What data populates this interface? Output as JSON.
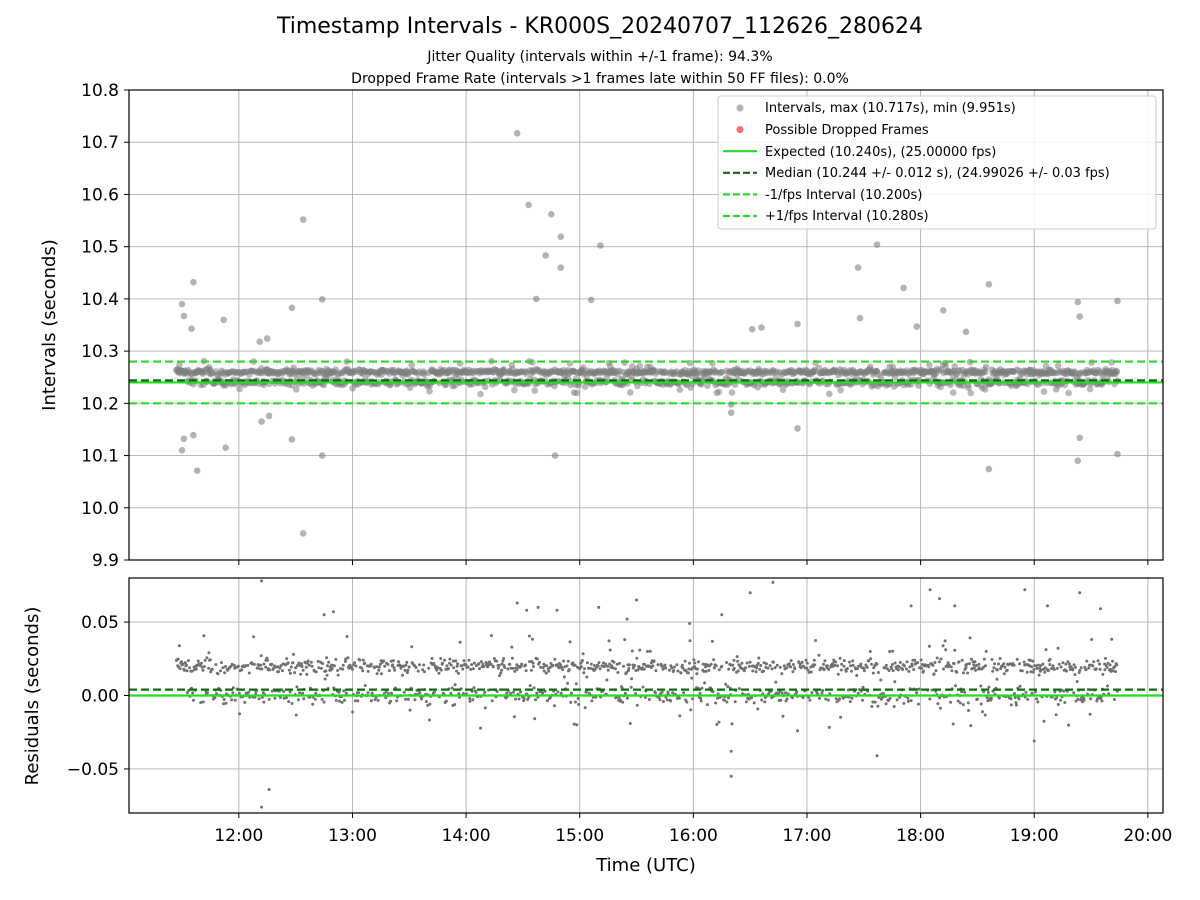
{
  "chart_data": [
    {
      "type": "scatter",
      "title": "Timestamp Intervals - KR000S_20240707_112626_280624",
      "subtitle_lines": [
        "Jitter Quality (intervals within +/-1 frame): 94.3%",
        "Dropped Frame Rate (intervals >1 frames late within 50 FF files): 0.0%"
      ],
      "xlabel": "",
      "ylabel": "Intervals (seconds)",
      "ylim": [
        9.9,
        10.8
      ],
      "xlim": [
        "11:02",
        "20:08"
      ],
      "yticks": [
        "9.9",
        "10.0",
        "10.1",
        "10.2",
        "10.3",
        "10.4",
        "10.5",
        "10.6",
        "10.7",
        "10.8"
      ],
      "grid": true,
      "legend_position": "top-right",
      "legend": [
        {
          "label": "Intervals, max (10.717s), min (9.951s)",
          "kind": "marker",
          "color": "#808080"
        },
        {
          "label": "Possible Dropped Frames",
          "kind": "marker",
          "color": "#f06060"
        },
        {
          "label": "Expected (10.240s), (25.00000 fps)",
          "kind": "line",
          "color": "#22dd22",
          "dash": "solid"
        },
        {
          "label": "Median (10.244 +/- 0.012 s), (24.99026 +/- 0.03 fps)",
          "kind": "line",
          "color": "#0b6e0b",
          "dash": "dashed"
        },
        {
          "label": "-1/fps Interval (10.200s)",
          "kind": "line",
          "color": "#22dd22",
          "dash": "dashed"
        },
        {
          "label": "+1/fps Interval (10.280s)",
          "kind": "line",
          "color": "#22dd22",
          "dash": "dashed"
        }
      ],
      "reference_lines": {
        "expected": 10.24,
        "median": 10.244,
        "lower": 10.2,
        "upper": 10.28
      },
      "time_range_utc": [
        "11:27",
        "19:44"
      ],
      "band_levels": [
        10.24,
        10.26
      ],
      "points": [
        {
          "x": "11:30",
          "y": 10.39
        },
        {
          "x": "11:31",
          "y": 10.367
        },
        {
          "x": "11:31",
          "y": 10.132
        },
        {
          "x": "11:30",
          "y": 10.11
        },
        {
          "x": "11:35",
          "y": 10.343
        },
        {
          "x": "11:36",
          "y": 10.432
        },
        {
          "x": "11:36",
          "y": 10.139
        },
        {
          "x": "11:38",
          "y": 10.071
        },
        {
          "x": "11:52",
          "y": 10.36
        },
        {
          "x": "11:53",
          "y": 10.115
        },
        {
          "x": "12:11",
          "y": 10.318
        },
        {
          "x": "12:15",
          "y": 10.324
        },
        {
          "x": "12:12",
          "y": 10.165
        },
        {
          "x": "12:16",
          "y": 10.176
        },
        {
          "x": "12:28",
          "y": 10.383
        },
        {
          "x": "12:28",
          "y": 10.131
        },
        {
          "x": "12:34",
          "y": 10.552
        },
        {
          "x": "12:34",
          "y": 9.951
        },
        {
          "x": "12:44",
          "y": 10.399
        },
        {
          "x": "12:44",
          "y": 10.1
        },
        {
          "x": "14:27",
          "y": 10.717
        },
        {
          "x": "14:33",
          "y": 10.58
        },
        {
          "x": "14:37",
          "y": 10.4
        },
        {
          "x": "14:42",
          "y": 10.483
        },
        {
          "x": "14:45",
          "y": 10.562
        },
        {
          "x": "14:50",
          "y": 10.519
        },
        {
          "x": "14:50",
          "y": 10.46
        },
        {
          "x": "14:47",
          "y": 10.1
        },
        {
          "x": "15:11",
          "y": 10.502
        },
        {
          "x": "15:06",
          "y": 10.398
        },
        {
          "x": "16:20",
          "y": 10.198
        },
        {
          "x": "16:20",
          "y": 10.182
        },
        {
          "x": "16:55",
          "y": 10.152
        },
        {
          "x": "16:55",
          "y": 10.352
        },
        {
          "x": "17:27",
          "y": 10.46
        },
        {
          "x": "17:28",
          "y": 10.363
        },
        {
          "x": "17:37",
          "y": 10.504
        },
        {
          "x": "17:51",
          "y": 10.421
        },
        {
          "x": "18:36",
          "y": 10.428
        },
        {
          "x": "18:36",
          "y": 10.074
        },
        {
          "x": "19:23",
          "y": 10.394
        },
        {
          "x": "19:24",
          "y": 10.366
        },
        {
          "x": "19:24",
          "y": 10.134
        },
        {
          "x": "19:23",
          "y": 10.09
        },
        {
          "x": "19:44",
          "y": 10.396
        },
        {
          "x": "19:44",
          "y": 10.103
        },
        {
          "x": "18:12",
          "y": 10.378
        },
        {
          "x": "17:58",
          "y": 10.347
        },
        {
          "x": "18:24",
          "y": 10.337
        },
        {
          "x": "16:31",
          "y": 10.342
        },
        {
          "x": "16:36",
          "y": 10.345
        }
      ]
    },
    {
      "type": "scatter",
      "xlabel": "Time (UTC)",
      "ylabel": "Residuals (seconds)",
      "ylim": [
        -0.08,
        0.08
      ],
      "yticks": [
        "−0.05",
        "0.00",
        "0.05"
      ],
      "xticks": [
        "12:00",
        "13:00",
        "14:00",
        "15:00",
        "16:00",
        "17:00",
        "18:00",
        "19:00",
        "20:00"
      ],
      "grid": true,
      "reference_lines": {
        "zero": 0.0,
        "median": 0.004
      },
      "band_levels": [
        0.0,
        0.02
      ],
      "points": [
        {
          "x": "12:12",
          "y": -0.076
        },
        {
          "x": "12:16",
          "y": -0.064
        },
        {
          "x": "16:20",
          "y": -0.055
        },
        {
          "x": "16:20",
          "y": -0.038
        },
        {
          "x": "16:55",
          "y": -0.024
        },
        {
          "x": "17:37",
          "y": -0.041
        },
        {
          "x": "19:00",
          "y": -0.031
        },
        {
          "x": "12:12",
          "y": 0.078
        },
        {
          "x": "12:45",
          "y": 0.055
        },
        {
          "x": "12:50",
          "y": 0.057
        },
        {
          "x": "14:27",
          "y": 0.063
        },
        {
          "x": "14:32",
          "y": 0.058
        },
        {
          "x": "14:38",
          "y": 0.06
        },
        {
          "x": "14:48",
          "y": 0.058
        },
        {
          "x": "15:10",
          "y": 0.06
        },
        {
          "x": "15:25",
          "y": 0.052
        },
        {
          "x": "15:30",
          "y": 0.065
        },
        {
          "x": "15:58",
          "y": 0.049
        },
        {
          "x": "16:15",
          "y": 0.055
        },
        {
          "x": "16:30",
          "y": 0.07
        },
        {
          "x": "16:42",
          "y": 0.077
        },
        {
          "x": "17:55",
          "y": 0.061
        },
        {
          "x": "18:05",
          "y": 0.072
        },
        {
          "x": "18:10",
          "y": 0.066
        },
        {
          "x": "18:18",
          "y": 0.061
        },
        {
          "x": "18:55",
          "y": 0.072
        },
        {
          "x": "19:07",
          "y": 0.061
        },
        {
          "x": "19:24",
          "y": 0.07
        },
        {
          "x": "19:35",
          "y": 0.059
        }
      ]
    }
  ]
}
